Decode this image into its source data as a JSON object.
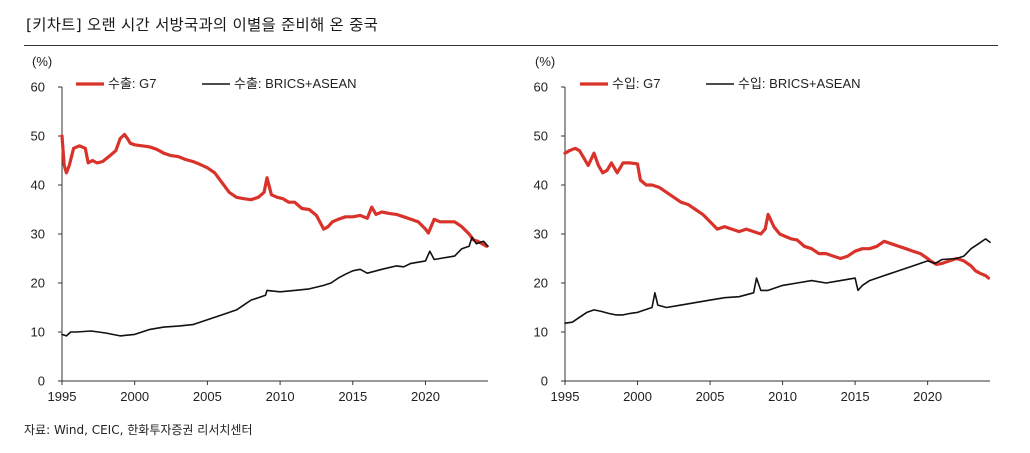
{
  "title": "[키차트] 오랜 시간 서방국과의 이별을 준비해 온 중국",
  "source": "자료: Wind, CEIC, 한화투자증권 리서치센터",
  "colors": {
    "g7": "#d9322b",
    "brics": "#111111"
  },
  "chart_data": [
    {
      "type": "line",
      "y_unit_label": "(%)",
      "ylim": [
        0,
        60
      ],
      "yticks": [
        "0",
        "10",
        "20",
        "30",
        "40",
        "50",
        "60"
      ],
      "xlim": [
        1995,
        2024.3
      ],
      "xticks": [
        "1995",
        "2000",
        "2005",
        "2010",
        "2015",
        "2020"
      ],
      "series": [
        {
          "name": "수출: G7",
          "color": "#d9322b",
          "x": [
            1995.0,
            1995.15,
            1995.3,
            1995.5,
            1995.8,
            1996.2,
            1996.6,
            1996.8,
            1997.1,
            1997.4,
            1997.8,
            1998.3,
            1998.7,
            1999.0,
            1999.3,
            1999.5,
            1999.7,
            2000.0,
            2000.5,
            2001.0,
            2001.5,
            2002.0,
            2002.5,
            2003.0,
            2003.5,
            2004.0,
            2004.5,
            2005.0,
            2005.5,
            2006.0,
            2006.5,
            2007.0,
            2007.5,
            2008.0,
            2008.5,
            2008.9,
            2009.1,
            2009.4,
            2009.8,
            2010.2,
            2010.6,
            2011.0,
            2011.5,
            2012.0,
            2012.5,
            2013.0,
            2013.3,
            2013.6,
            2014.0,
            2014.5,
            2015.0,
            2015.5,
            2016.0,
            2016.3,
            2016.6,
            2017.0,
            2017.5,
            2018.0,
            2018.5,
            2019.0,
            2019.5,
            2020.0,
            2020.2,
            2020.6,
            2021.0,
            2021.5,
            2022.0,
            2022.5,
            2023.0,
            2023.3,
            2023.6,
            2023.9,
            2024.2
          ],
          "y": [
            50.0,
            44.0,
            42.5,
            44.0,
            47.5,
            48.0,
            47.5,
            44.5,
            45.0,
            44.5,
            44.8,
            46.0,
            47.0,
            49.5,
            50.3,
            49.5,
            48.5,
            48.2,
            48.0,
            47.8,
            47.3,
            46.5,
            46.0,
            45.8,
            45.2,
            44.8,
            44.2,
            43.5,
            42.5,
            40.5,
            38.5,
            37.5,
            37.2,
            37.0,
            37.5,
            38.5,
            41.5,
            38.0,
            37.5,
            37.2,
            36.5,
            36.5,
            35.2,
            35.0,
            33.8,
            31.0,
            31.5,
            32.5,
            33.0,
            33.5,
            33.5,
            33.8,
            33.2,
            35.5,
            34.0,
            34.5,
            34.2,
            34.0,
            33.5,
            33.0,
            32.5,
            31.0,
            30.2,
            33.0,
            32.5,
            32.5,
            32.5,
            31.5,
            30.0,
            28.8,
            28.5,
            28.0,
            27.5
          ]
        },
        {
          "name": "수출: BRICS+ASEAN",
          "color": "#111111",
          "x": [
            1995.0,
            1995.3,
            1995.6,
            1996.0,
            1997.0,
            1998.0,
            1999.0,
            2000.0,
            2001.0,
            2002.0,
            2003.0,
            2004.0,
            2005.0,
            2006.0,
            2007.0,
            2007.5,
            2008.0,
            2008.5,
            2009.0,
            2009.1,
            2010.0,
            2011.0,
            2012.0,
            2013.0,
            2013.5,
            2014.0,
            2014.5,
            2015.0,
            2015.5,
            2016.0,
            2017.0,
            2018.0,
            2018.5,
            2019.0,
            2020.0,
            2020.3,
            2020.6,
            2021.0,
            2022.0,
            2022.5,
            2023.0,
            2023.2,
            2023.5,
            2024.0,
            2024.3
          ],
          "y": [
            9.5,
            9.2,
            10.0,
            10.0,
            10.2,
            9.8,
            9.2,
            9.5,
            10.5,
            11.0,
            11.2,
            11.5,
            12.5,
            13.5,
            14.5,
            15.5,
            16.5,
            17.0,
            17.5,
            18.5,
            18.2,
            18.5,
            18.8,
            19.5,
            20.0,
            21.0,
            21.8,
            22.5,
            22.8,
            22.0,
            22.8,
            23.5,
            23.3,
            24.0,
            24.5,
            26.5,
            24.8,
            25.0,
            25.5,
            27.0,
            27.5,
            29.3,
            28.0,
            28.5,
            27.5
          ]
        }
      ]
    },
    {
      "type": "line",
      "y_unit_label": "(%)",
      "ylim": [
        0,
        60
      ],
      "yticks": [
        "0",
        "10",
        "20",
        "30",
        "40",
        "50",
        "60"
      ],
      "xlim": [
        1995,
        2024.3
      ],
      "xticks": [
        "1995",
        "2000",
        "2005",
        "2010",
        "2015",
        "2020"
      ],
      "series": [
        {
          "name": "수입: G7",
          "color": "#d9322b",
          "x": [
            1995.0,
            1995.3,
            1995.7,
            1996.0,
            1996.3,
            1996.6,
            1997.0,
            1997.3,
            1997.6,
            1997.9,
            1998.2,
            1998.6,
            1998.9,
            1999.0,
            1999.5,
            2000.0,
            2000.2,
            2000.6,
            2001.0,
            2001.5,
            2002.0,
            2002.5,
            2003.0,
            2003.5,
            2004.0,
            2004.5,
            2005.0,
            2005.5,
            2006.0,
            2006.5,
            2007.0,
            2007.5,
            2008.0,
            2008.5,
            2008.8,
            2009.0,
            2009.4,
            2009.8,
            2010.2,
            2010.6,
            2011.0,
            2011.5,
            2012.0,
            2012.5,
            2013.0,
            2013.5,
            2014.0,
            2014.5,
            2015.0,
            2015.5,
            2016.0,
            2016.5,
            2017.0,
            2017.5,
            2018.0,
            2018.5,
            2019.0,
            2019.5,
            2020.0,
            2020.2,
            2020.6,
            2021.0,
            2021.5,
            2022.0,
            2022.5,
            2023.0,
            2023.3,
            2023.6,
            2024.0,
            2024.2
          ],
          "y": [
            46.5,
            47.0,
            47.5,
            47.0,
            45.5,
            44.0,
            46.5,
            44.0,
            42.5,
            43.0,
            44.5,
            42.5,
            44.0,
            44.5,
            44.5,
            44.3,
            41.0,
            40.0,
            40.0,
            39.5,
            38.5,
            37.5,
            36.5,
            36.0,
            35.0,
            34.0,
            32.5,
            31.0,
            31.5,
            31.0,
            30.5,
            31.0,
            30.5,
            30.0,
            31.0,
            34.0,
            31.5,
            30.0,
            29.5,
            29.0,
            28.8,
            27.5,
            27.0,
            26.0,
            26.0,
            25.5,
            25.0,
            25.5,
            26.5,
            27.0,
            27.0,
            27.5,
            28.5,
            28.0,
            27.5,
            27.0,
            26.5,
            26.0,
            25.0,
            24.5,
            23.8,
            24.0,
            24.5,
            25.0,
            24.5,
            23.5,
            22.5,
            22.0,
            21.5,
            21.0
          ]
        },
        {
          "name": "수입: BRICS+ASEAN",
          "color": "#111111",
          "x": [
            1995.0,
            1995.5,
            1996.0,
            1996.5,
            1997.0,
            1997.5,
            1998.0,
            1998.5,
            1999.0,
            1999.5,
            2000.0,
            2000.5,
            2001.0,
            2001.2,
            2001.4,
            2002.0,
            2003.0,
            2004.0,
            2005.0,
            2006.0,
            2007.0,
            2008.0,
            2008.2,
            2008.5,
            2009.0,
            2009.5,
            2010.0,
            2011.0,
            2012.0,
            2013.0,
            2014.0,
            2015.0,
            2015.2,
            2015.5,
            2016.0,
            2017.0,
            2018.0,
            2019.0,
            2020.0,
            2020.5,
            2021.0,
            2022.0,
            2022.5,
            2023.0,
            2023.5,
            2024.0,
            2024.3
          ],
          "y": [
            11.8,
            12.0,
            13.0,
            14.0,
            14.5,
            14.2,
            13.8,
            13.5,
            13.5,
            13.8,
            14.0,
            14.5,
            15.0,
            18.0,
            15.5,
            15.0,
            15.5,
            16.0,
            16.5,
            17.0,
            17.2,
            18.0,
            21.0,
            18.5,
            18.5,
            19.0,
            19.5,
            20.0,
            20.5,
            20.0,
            20.5,
            21.0,
            18.5,
            19.5,
            20.5,
            21.5,
            22.5,
            23.5,
            24.5,
            24.0,
            24.8,
            25.0,
            25.5,
            27.0,
            28.0,
            29.0,
            28.3
          ]
        }
      ]
    }
  ]
}
